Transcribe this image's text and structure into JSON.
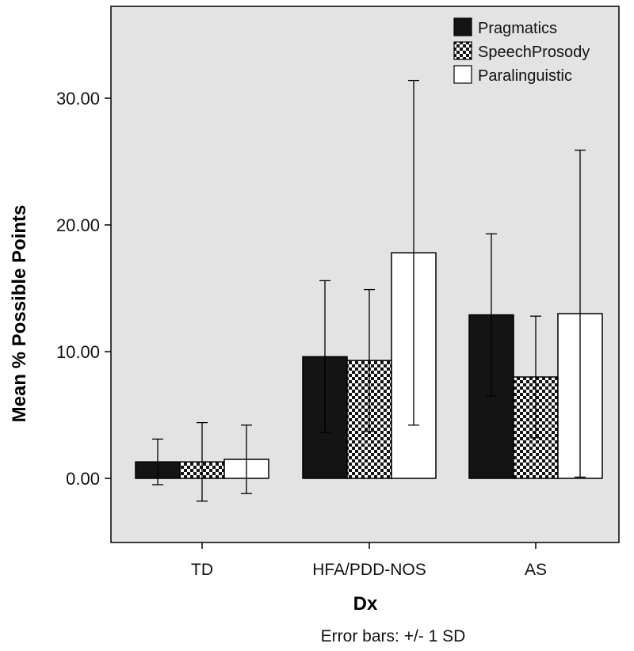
{
  "chart_data": {
    "type": "bar",
    "title": "",
    "xlabel": "Dx",
    "ylabel": "Mean % Possible Points",
    "footnote": "Error bars: +/- 1 SD",
    "categories": [
      "TD",
      "HFA/PDD-NOS",
      "AS"
    ],
    "ylim": [
      -5,
      37
    ],
    "yticks": [
      0,
      10,
      20,
      30
    ],
    "ytick_labels": [
      "0.00",
      "10.00",
      "20.00",
      "30.00"
    ],
    "grid": false,
    "legend_position": "top-right",
    "series": [
      {
        "name": "Pragmatics",
        "pattern": "solid-black",
        "values": [
          1.3,
          9.6,
          12.9
        ],
        "sd": [
          1.8,
          6.0,
          6.4
        ]
      },
      {
        "name": "SpeechProsody",
        "pattern": "checker",
        "values": [
          1.3,
          9.3,
          8.0
        ],
        "sd": [
          3.1,
          5.6,
          4.8
        ]
      },
      {
        "name": "Paralinguistic",
        "pattern": "white",
        "values": [
          1.5,
          17.8,
          13.0
        ],
        "sd": [
          2.7,
          13.6,
          12.9
        ]
      }
    ],
    "colors": {
      "background": "#e3e3e3",
      "bar_dark": "#141414",
      "bar_light": "#ffffff",
      "stroke": "#000000"
    }
  }
}
